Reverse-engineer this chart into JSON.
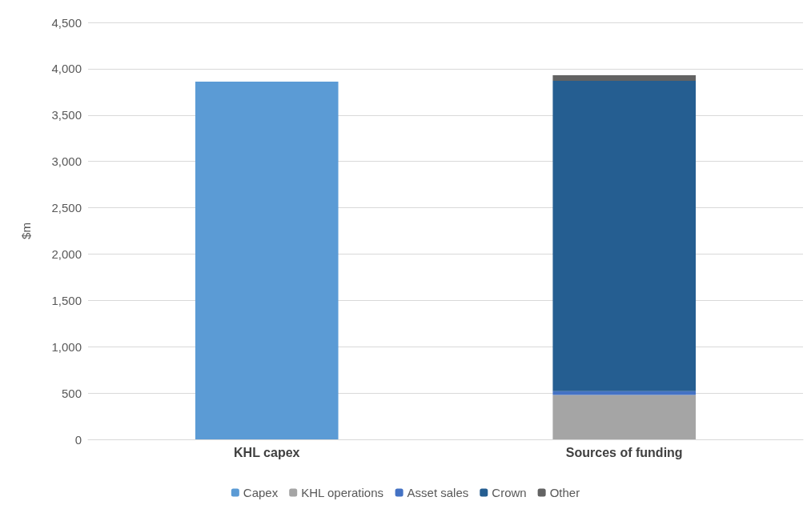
{
  "chart_data": {
    "type": "bar",
    "stacked": true,
    "ylabel": "$m",
    "categories": [
      "KHL capex",
      "Sources of funding"
    ],
    "series": [
      {
        "name": "Capex",
        "color": "#5b9bd5",
        "values": [
          3860,
          null
        ]
      },
      {
        "name": "KHL operations",
        "color": "#a5a5a5",
        "values": [
          null,
          480
        ]
      },
      {
        "name": "Asset sales",
        "color": "#4472c4",
        "values": [
          null,
          40
        ]
      },
      {
        "name": "Crown",
        "color": "#255e91",
        "values": [
          null,
          3350
        ]
      },
      {
        "name": "Other",
        "color": "#636363",
        "values": [
          null,
          60
        ]
      }
    ],
    "ylim": [
      0,
      4500
    ],
    "yticks": [
      0,
      500,
      {
        "value": 1000,
        "label": "1,000"
      },
      {
        "value": 1500,
        "label": "1,500"
      },
      {
        "value": 2000,
        "label": "2,000"
      },
      {
        "value": 2500,
        "label": "2,500"
      },
      {
        "value": 3000,
        "label": "3,000"
      },
      {
        "value": 3500,
        "label": "3,500"
      },
      {
        "value": 4000,
        "label": "4,000"
      },
      {
        "value": 4500,
        "label": "4,500"
      }
    ],
    "grid": "y",
    "legend": "bottom"
  }
}
